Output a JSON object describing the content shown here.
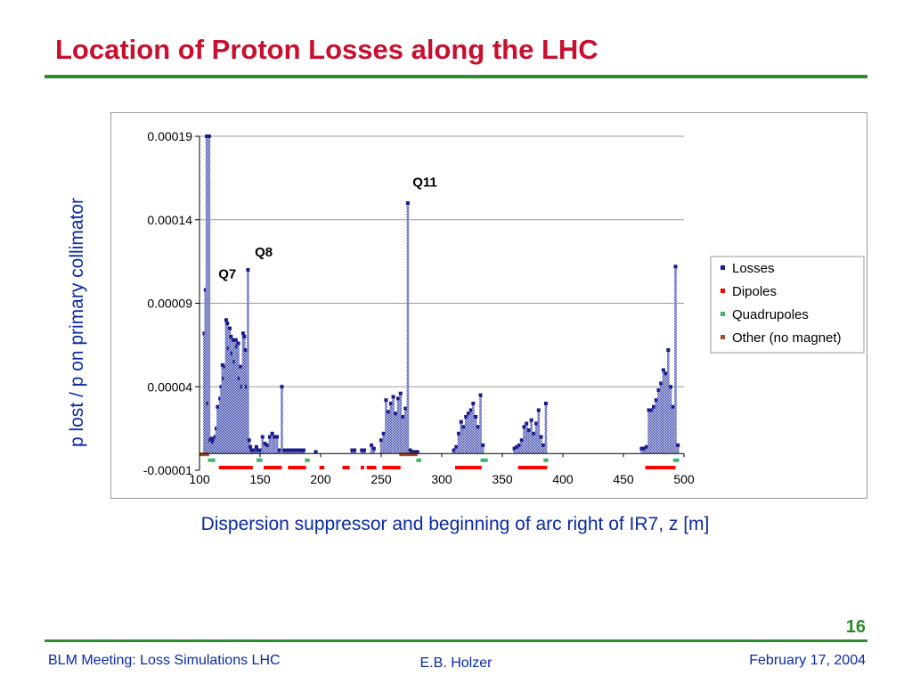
{
  "slide": {
    "title": "Location of Proton Losses along the LHC",
    "page_number": "16",
    "footer_left": "BLM Meeting: Loss Simulations LHC",
    "footer_center": "E.B. Holzer",
    "footer_right": "February 17, 2004"
  },
  "colors": {
    "title": "#c8102e",
    "rule": "#2e8b2e",
    "axis_text": "#0a2aa5",
    "losses": "#1a1a8c",
    "dipoles": "#ff0000",
    "quadrupoles": "#3cb371",
    "other": "#a0522d"
  },
  "chart_data": {
    "type": "bar",
    "xlabel": "Dispersion suppressor and beginning of arc right of IR7, z [m]",
    "ylabel": "p lost / p on primary collimator",
    "xlim": [
      100,
      500
    ],
    "ylim": [
      -1e-05,
      0.00019
    ],
    "xticks": [
      100,
      150,
      200,
      250,
      300,
      350,
      400,
      450,
      500
    ],
    "yticks": [
      "-0.00001",
      "0.00004",
      "0.00009",
      "0.00014",
      "0.00019"
    ],
    "ytick_values": [
      -1e-05,
      4e-05,
      9e-05,
      0.00014,
      0.00019
    ],
    "grid": "horizontal",
    "legend_position": "right",
    "annotations": [
      {
        "text": "Q7",
        "x": 123,
        "y": 0.000105
      },
      {
        "text": "Q8",
        "x": 153,
        "y": 0.000118
      },
      {
        "text": "Q11",
        "x": 286,
        "y": 0.00016
      }
    ],
    "series": [
      {
        "name": "Losses",
        "x": [
          104,
          105,
          106,
          107,
          108,
          109,
          110,
          111,
          112,
          113,
          114,
          115,
          116,
          117,
          118,
          119,
          120,
          121,
          122,
          123,
          124,
          125,
          126,
          127,
          128,
          129,
          130,
          131,
          132,
          133,
          134,
          135,
          136,
          137,
          138,
          139,
          140,
          141,
          142,
          143,
          144,
          145,
          146,
          147,
          148,
          150,
          152,
          154,
          156,
          158,
          160,
          162,
          164,
          166,
          168,
          170,
          172,
          174,
          176,
          178,
          180,
          182,
          184,
          186,
          196,
          226,
          228,
          234,
          236,
          242,
          244,
          250,
          252,
          254,
          256,
          258,
          260,
          262,
          264,
          266,
          268,
          270,
          272,
          274,
          276,
          278,
          280,
          310,
          312,
          314,
          316,
          318,
          320,
          322,
          324,
          326,
          328,
          330,
          332,
          334,
          360,
          362,
          364,
          366,
          368,
          370,
          372,
          374,
          376,
          378,
          380,
          382,
          384,
          386,
          465,
          467,
          469,
          471,
          473,
          475,
          477,
          479,
          481,
          483,
          485,
          487,
          489,
          491,
          493,
          495
        ],
        "values": [
          7.2e-05,
          9.8e-05,
          0.00019,
          3e-05,
          0.00019,
          8e-06,
          9e-06,
          7e-06,
          8e-06,
          1e-05,
          1.5e-05,
          2.8e-05,
          2.8e-05,
          3.3e-05,
          4e-05,
          5.3e-05,
          4.5e-05,
          5.2e-05,
          8e-05,
          7.8e-05,
          6.3e-05,
          7.5e-05,
          7e-05,
          6e-05,
          6.8e-05,
          5.5e-05,
          6.8e-05,
          6.4e-05,
          6.6e-05,
          4.5e-05,
          5.2e-05,
          4e-05,
          7.2e-05,
          7e-05,
          6.2e-05,
          4e-05,
          0.00011,
          8e-06,
          4e-06,
          2e-06,
          2e-06,
          2e-06,
          2e-06,
          4e-06,
          2e-06,
          2e-06,
          1e-05,
          6e-06,
          5e-06,
          1e-05,
          1.2e-05,
          1e-05,
          1e-05,
          2e-06,
          4e-05,
          2e-06,
          2e-06,
          2e-06,
          2e-06,
          2e-06,
          2e-06,
          2e-06,
          2e-06,
          2e-06,
          1e-06,
          2e-06,
          2e-06,
          2e-06,
          2e-06,
          5e-06,
          3e-06,
          8e-06,
          1.2e-05,
          3.2e-05,
          2.5e-05,
          3e-05,
          3.4e-05,
          2.4e-05,
          3.3e-05,
          3.6e-05,
          2.2e-05,
          2.7e-05,
          0.00015,
          2e-06,
          1e-06,
          1e-06,
          1e-06,
          2e-06,
          4e-06,
          1.2e-05,
          1.9e-05,
          1.6e-05,
          2.2e-05,
          2.4e-05,
          2.6e-05,
          3e-05,
          2.2e-05,
          1.6e-05,
          3.5e-05,
          5e-06,
          3e-06,
          4e-06,
          5e-06,
          8e-06,
          1.6e-05,
          1.8e-05,
          1.4e-05,
          2e-05,
          1.2e-05,
          1.8e-05,
          2.6e-05,
          1e-05,
          5e-06,
          3e-05,
          3e-06,
          3e-06,
          4e-06,
          2.6e-05,
          2.6e-05,
          2.8e-05,
          3.2e-05,
          3.8e-05,
          4.2e-05,
          5e-05,
          4.8e-05,
          6.2e-05,
          4e-05,
          2.8e-05,
          0.000112,
          5e-06
        ]
      },
      {
        "name": "Dipoles",
        "segments": [
          [
            116,
            144
          ],
          [
            153,
            168
          ],
          [
            173,
            188
          ],
          [
            199,
            203
          ],
          [
            218,
            224
          ],
          [
            233,
            236
          ],
          [
            238,
            246
          ],
          [
            251,
            266
          ],
          [
            311,
            333
          ],
          [
            363,
            387
          ],
          [
            468,
            493
          ]
        ]
      },
      {
        "name": "Quadrupoles",
        "segments": [
          [
            107,
            113
          ],
          [
            147,
            152
          ],
          [
            187,
            191
          ],
          [
            279,
            283
          ],
          [
            332,
            338
          ],
          [
            384,
            388
          ],
          [
            491,
            496
          ]
        ]
      },
      {
        "name": "Other (no magnet)",
        "segments": [
          [
            100,
            108
          ],
          [
            265,
            280
          ]
        ]
      }
    ]
  }
}
